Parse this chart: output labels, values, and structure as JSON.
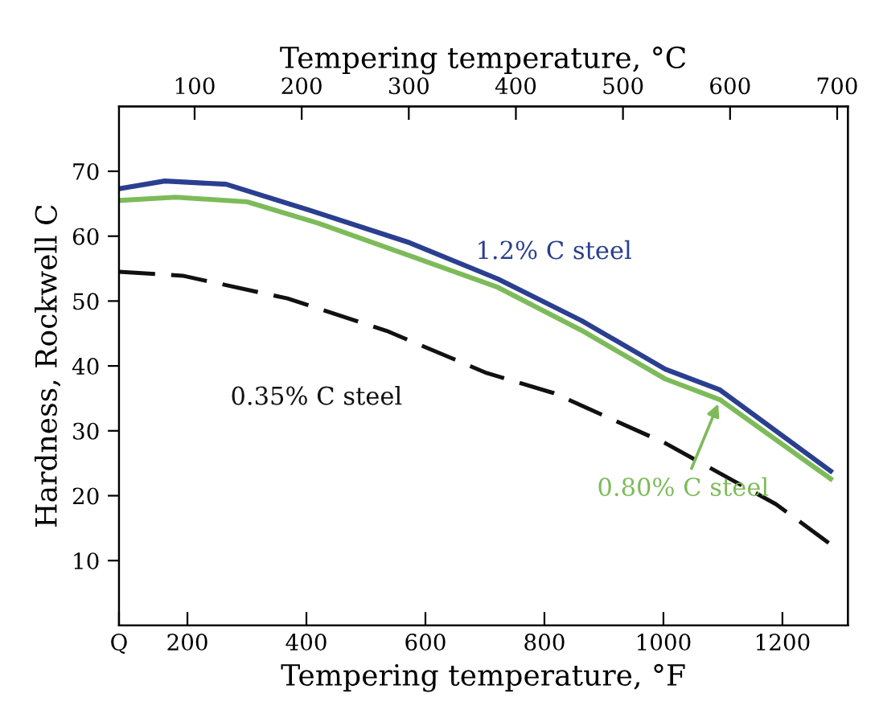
{
  "chart_data": {
    "type": "line",
    "xlabel": "Tempering temperature, °F",
    "x2label": "Tempering temperature, °C",
    "ylabel": "Hardness, Rockwell C",
    "xlim": [
      85,
      1310
    ],
    "xticks": [
      {
        "value": 85,
        "label": "Q"
      },
      200,
      400,
      600,
      800,
      1000,
      1200
    ],
    "x2lim": [
      29.4,
      710
    ],
    "x2ticks": [
      100,
      200,
      300,
      400,
      500,
      600,
      700
    ],
    "ylim": [
      0,
      80
    ],
    "yticks": [
      10,
      20,
      30,
      40,
      50,
      60,
      70
    ],
    "grid": false,
    "legend": false,
    "marker": "none",
    "series": [
      {
        "name": "1.2% C steel",
        "color": "#2a3f8f",
        "line_style": "solid",
        "x": [
          85,
          162,
          265,
          405,
          573,
          722,
          862,
          1003,
          1095,
          1281
        ],
        "values": [
          67.3,
          68.5,
          68,
          64,
          59,
          53.4,
          47,
          39.5,
          36.3,
          23.8
        ]
      },
      {
        "name": "0.80% C steel",
        "color": "#7dbb5a",
        "line_style": "solid",
        "x": [
          85,
          180,
          300,
          420,
          573,
          722,
          862,
          1003,
          1095,
          1281
        ],
        "values": [
          65.5,
          66,
          65.3,
          62,
          57,
          52.1,
          45.5,
          38,
          34.8,
          22.6
        ]
      },
      {
        "name": "0.35% C steel",
        "color": "#111111",
        "line_style": "dashed",
        "x": [
          85,
          192,
          368,
          535,
          649,
          703,
          816,
          1003,
          1189,
          1281
        ],
        "values": [
          54.5,
          53.9,
          50.4,
          45.4,
          41,
          38.9,
          35.8,
          28.1,
          18.7,
          12.5
        ]
      }
    ]
  }
}
